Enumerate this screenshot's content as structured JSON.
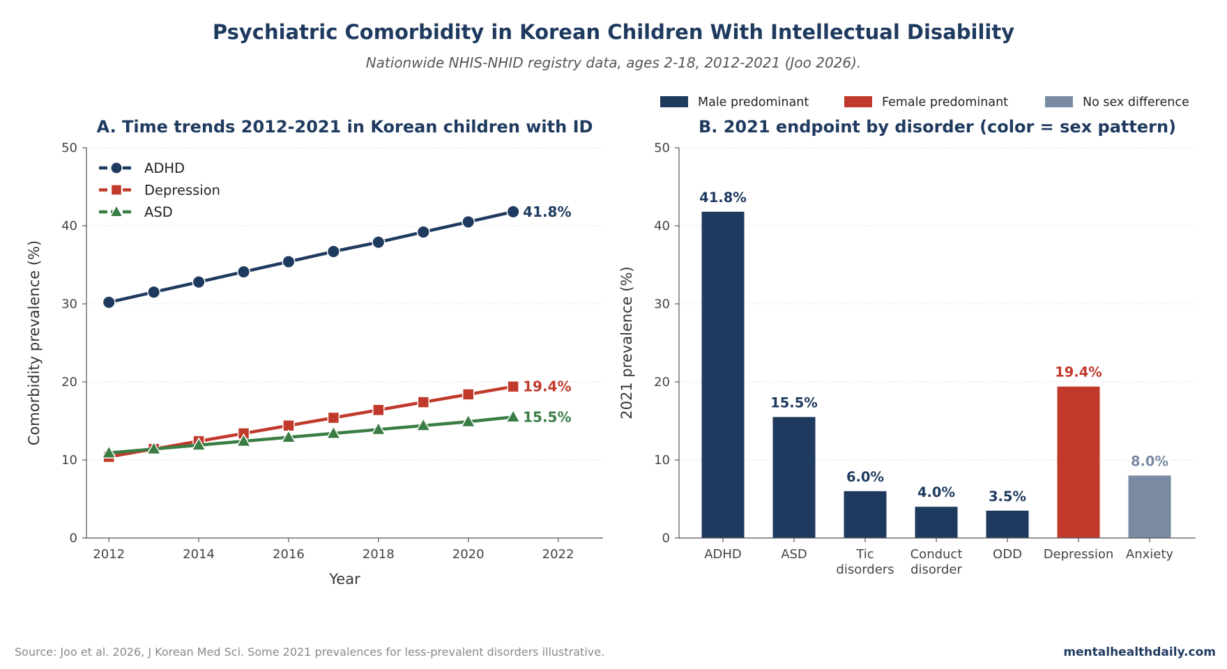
{
  "header": {
    "title": "Psychiatric Comorbidity in Korean Children With Intellectual Disability",
    "subtitle": "Nationwide NHIS-NHID registry data, ages 2-18, 2012-2021 (Joo 2026)."
  },
  "footer": {
    "source": "Source: Joo et al. 2026, J Korean Med Sci. Some 2021 prevalences for less-prevalent disorders illustrative.",
    "brand": "mentalhealthdaily.com"
  },
  "top_legend": [
    {
      "label": "Male predominant",
      "color": "#1f3a5f"
    },
    {
      "label": "Female predominant",
      "color": "#c0392b"
    },
    {
      "label": "No sex difference",
      "color": "#7a8aa3"
    }
  ],
  "chart_data": [
    {
      "type": "line",
      "title": "A. Time trends 2012-2021 in Korean children with ID",
      "xlabel": "Year",
      "ylabel": "Comorbidity prevalence (%)",
      "xlim": [
        2011.5,
        2023
      ],
      "ylim": [
        0,
        50
      ],
      "x_ticks": [
        2012,
        2014,
        2016,
        2018,
        2020,
        2022
      ],
      "y_ticks": [
        0,
        10,
        20,
        30,
        40,
        50
      ],
      "grid": "y dotted",
      "legend_position": "top-left",
      "x": [
        2012,
        2013,
        2014,
        2015,
        2016,
        2017,
        2018,
        2019,
        2020,
        2021
      ],
      "series": [
        {
          "name": "ADHD",
          "color": "#1f3a5f",
          "marker": "circle",
          "end_label": "41.8%",
          "values": [
            30.2,
            31.5,
            32.8,
            34.1,
            35.4,
            36.7,
            37.9,
            39.2,
            40.5,
            41.8
          ]
        },
        {
          "name": "Depression",
          "color": "#c0392b",
          "marker": "square",
          "end_label": "19.4%",
          "values": [
            10.4,
            11.4,
            12.4,
            13.4,
            14.4,
            15.4,
            16.4,
            17.4,
            18.4,
            19.4
          ]
        },
        {
          "name": "ASD",
          "color": "#3a7d44",
          "marker": "triangle",
          "end_label": "15.5%",
          "values": [
            10.9,
            11.4,
            11.9,
            12.4,
            12.9,
            13.4,
            13.9,
            14.4,
            14.9,
            15.5
          ]
        }
      ]
    },
    {
      "type": "bar",
      "title": "B. 2021 endpoint by disorder (color = sex pattern)",
      "xlabel": "",
      "ylabel": "2021 prevalence (%)",
      "ylim": [
        0,
        50
      ],
      "y_ticks": [
        0,
        10,
        20,
        30,
        40,
        50
      ],
      "grid": "y dotted",
      "legend_position": "top",
      "categories": [
        [
          "ADHD"
        ],
        [
          "ASD"
        ],
        [
          "Tic",
          "disorders"
        ],
        [
          "Conduct",
          "disorder"
        ],
        [
          "ODD"
        ],
        [
          "Depression"
        ],
        [
          "Anxiety"
        ]
      ],
      "values": [
        41.8,
        15.5,
        6.0,
        4.0,
        3.5,
        19.4,
        8.0
      ],
      "labels": [
        "41.8%",
        "15.5%",
        "6.0%",
        "4.0%",
        "3.5%",
        "19.4%",
        "8.0%"
      ],
      "colors": [
        "#1f3a5f",
        "#1f3a5f",
        "#1f3a5f",
        "#1f3a5f",
        "#1f3a5f",
        "#c0392b",
        "#7a8aa3"
      ]
    }
  ]
}
